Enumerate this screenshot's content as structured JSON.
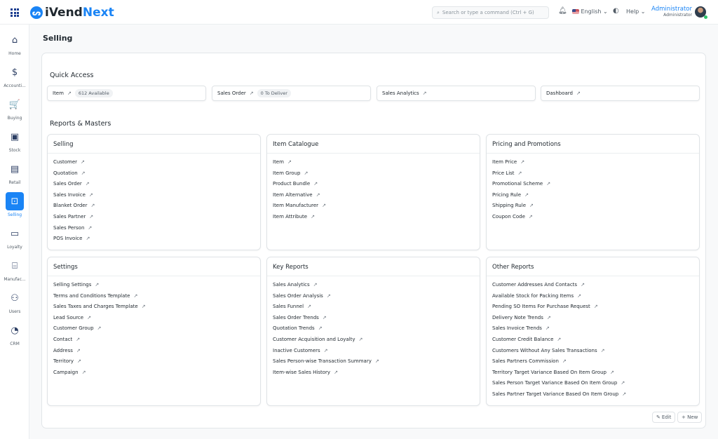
{
  "app": {
    "brand_prefix": "iVend",
    "brand_suffix": "Next"
  },
  "topbar": {
    "search_placeholder": "Search or type a command (Ctrl + G)",
    "language": "English",
    "help": "Help",
    "user_name": "Administrator",
    "user_role": "Administrator"
  },
  "sidebar": {
    "items": [
      {
        "label": "Home",
        "icon": "home-icon",
        "glyph": "⌂"
      },
      {
        "label": "Accounti...",
        "icon": "dollar-icon",
        "glyph": "$"
      },
      {
        "label": "Buying",
        "icon": "cart-icon",
        "glyph": "🛒"
      },
      {
        "label": "Stock",
        "icon": "box-icon",
        "glyph": "▣"
      },
      {
        "label": "Retail",
        "icon": "pos-icon",
        "glyph": "▤"
      },
      {
        "label": "Selling",
        "icon": "selling-icon",
        "glyph": "⊡",
        "active": true
      },
      {
        "label": "Loyalty",
        "icon": "loyalty-card-icon",
        "glyph": "▭"
      },
      {
        "label": "Manufac...",
        "icon": "factory-icon",
        "glyph": "⌸"
      },
      {
        "label": "Users",
        "icon": "users-icon",
        "glyph": "⚇"
      },
      {
        "label": "CRM",
        "icon": "pie-chart-icon",
        "glyph": "◔"
      }
    ]
  },
  "page": {
    "title": "Selling",
    "quick_access_heading": "Quick Access",
    "reports_heading": "Reports & Masters",
    "edit": "Edit",
    "new": "+ New"
  },
  "quick_access": [
    {
      "label": "Item",
      "badge": "612 Available"
    },
    {
      "label": "Sales Order",
      "badge": "0 To Deliver"
    },
    {
      "label": "Sales Analytics",
      "badge": ""
    },
    {
      "label": "Dashboard",
      "badge": ""
    }
  ],
  "cards": [
    {
      "title": "Selling",
      "links": [
        "Customer",
        "Quotation",
        "Sales Order",
        "Sales Invoice",
        "Blanket Order",
        "Sales Partner",
        "Sales Person",
        "POS Invoice"
      ]
    },
    {
      "title": "Item Catalogue",
      "links": [
        "Item",
        "Item Group",
        "Product Bundle",
        "Item Alternative",
        "Item Manufacturer",
        "Item Attribute"
      ]
    },
    {
      "title": "Pricing and Promotions",
      "links": [
        "Item Price",
        "Price List",
        "Promotional Scheme",
        "Pricing Rule",
        "Shipping Rule",
        "Coupon Code"
      ]
    },
    {
      "title": "Settings",
      "links": [
        "Selling Settings",
        "Terms and Conditions Template",
        "Sales Taxes and Charges Template",
        "Lead Source",
        "Customer Group",
        "Contact",
        "Address",
        "Territory",
        "Campaign"
      ]
    },
    {
      "title": "Key Reports",
      "links": [
        "Sales Analytics",
        "Sales Order Analysis",
        "Sales Funnel",
        "Sales Order Trends",
        "Quotation Trends",
        "Customer Acquisition and Loyalty",
        "Inactive Customers",
        "Sales Person-wise Transaction Summary",
        "Item-wise Sales History"
      ]
    },
    {
      "title": "Other Reports",
      "links": [
        "Customer Addresses And Contacts",
        "Available Stock for Packing Items",
        "Pending SO Items For Purchase Request",
        "Delivery Note Trends",
        "Sales Invoice Trends",
        "Customer Credit Balance",
        "Customers Without Any Sales Transactions",
        "Sales Partners Commission",
        "Territory Target Variance Based On Item Group",
        "Sales Person Target Variance Based On Item Group",
        "Sales Partner Target Variance Based On Item Group"
      ]
    }
  ],
  "colors": {
    "accent": "#1a84f5"
  }
}
